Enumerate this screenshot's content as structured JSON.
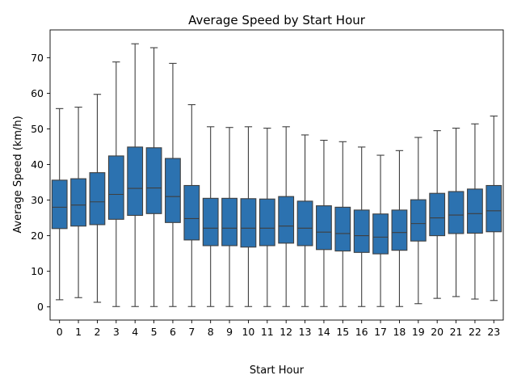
{
  "chart_data": {
    "type": "boxplot",
    "title": "Average Speed by Start Hour",
    "xlabel": "Start Hour",
    "ylabel": "Average Speed (km/h)",
    "ylim": [
      -3.7,
      77.8
    ],
    "yticks": [
      0,
      10,
      20,
      30,
      40,
      50,
      60,
      70
    ],
    "grid": false,
    "legend": "none",
    "box_color": "#2c72b0",
    "line_color": "#3f3f3f",
    "categories": [
      "0",
      "1",
      "2",
      "3",
      "4",
      "5",
      "6",
      "7",
      "8",
      "9",
      "10",
      "11",
      "12",
      "13",
      "14",
      "15",
      "16",
      "17",
      "18",
      "19",
      "20",
      "21",
      "22",
      "23"
    ],
    "series": [
      {
        "stats": [
          {
            "whislo": 2.0,
            "q1": 22.0,
            "med": 28.0,
            "q3": 35.6,
            "whishi": 55.7
          },
          {
            "whislo": 2.6,
            "q1": 22.7,
            "med": 28.6,
            "q3": 36.0,
            "whishi": 56.1
          },
          {
            "whislo": 1.3,
            "q1": 23.1,
            "med": 29.5,
            "q3": 37.7,
            "whishi": 59.7
          },
          {
            "whislo": 0.1,
            "q1": 24.6,
            "med": 31.6,
            "q3": 42.4,
            "whishi": 68.8
          },
          {
            "whislo": 0.1,
            "q1": 25.7,
            "med": 33.3,
            "q3": 44.9,
            "whishi": 73.9
          },
          {
            "whislo": 0.1,
            "q1": 26.2,
            "med": 33.4,
            "q3": 44.7,
            "whishi": 72.8
          },
          {
            "whislo": 0.1,
            "q1": 23.7,
            "med": 31.0,
            "q3": 41.7,
            "whishi": 68.4
          },
          {
            "whislo": 0.1,
            "q1": 18.8,
            "med": 24.8,
            "q3": 34.1,
            "whishi": 56.8
          },
          {
            "whislo": 0.1,
            "q1": 17.2,
            "med": 22.1,
            "q3": 30.5,
            "whishi": 50.6
          },
          {
            "whislo": 0.1,
            "q1": 17.2,
            "med": 22.1,
            "q3": 30.5,
            "whishi": 50.4
          },
          {
            "whislo": 0.1,
            "q1": 16.8,
            "med": 22.1,
            "q3": 30.4,
            "whishi": 50.6
          },
          {
            "whislo": 0.1,
            "q1": 17.2,
            "med": 22.1,
            "q3": 30.3,
            "whishi": 50.2
          },
          {
            "whislo": 0.1,
            "q1": 17.9,
            "med": 22.7,
            "q3": 31.0,
            "whishi": 50.6
          },
          {
            "whislo": 0.1,
            "q1": 17.2,
            "med": 22.1,
            "q3": 29.7,
            "whishi": 48.3
          },
          {
            "whislo": 0.1,
            "q1": 16.1,
            "med": 21.0,
            "q3": 28.4,
            "whishi": 46.8
          },
          {
            "whislo": 0.1,
            "q1": 15.7,
            "med": 20.6,
            "q3": 28.0,
            "whishi": 46.4
          },
          {
            "whislo": 0.1,
            "q1": 15.3,
            "med": 20.0,
            "q3": 27.2,
            "whishi": 44.9
          },
          {
            "whislo": 0.1,
            "q1": 14.9,
            "med": 19.6,
            "q3": 26.1,
            "whishi": 42.6
          },
          {
            "whislo": 0.1,
            "q1": 15.9,
            "med": 20.9,
            "q3": 27.2,
            "whishi": 43.9
          },
          {
            "whislo": 0.9,
            "q1": 18.5,
            "med": 23.4,
            "q3": 30.1,
            "whishi": 47.6
          },
          {
            "whislo": 2.4,
            "q1": 20.0,
            "med": 25.0,
            "q3": 31.9,
            "whishi": 49.5
          },
          {
            "whislo": 2.9,
            "q1": 20.6,
            "med": 25.8,
            "q3": 32.4,
            "whishi": 50.2
          },
          {
            "whislo": 2.2,
            "q1": 20.7,
            "med": 26.2,
            "q3": 33.1,
            "whishi": 51.4
          },
          {
            "whislo": 1.8,
            "q1": 21.1,
            "med": 27.0,
            "q3": 34.1,
            "whishi": 53.6
          }
        ]
      }
    ]
  }
}
